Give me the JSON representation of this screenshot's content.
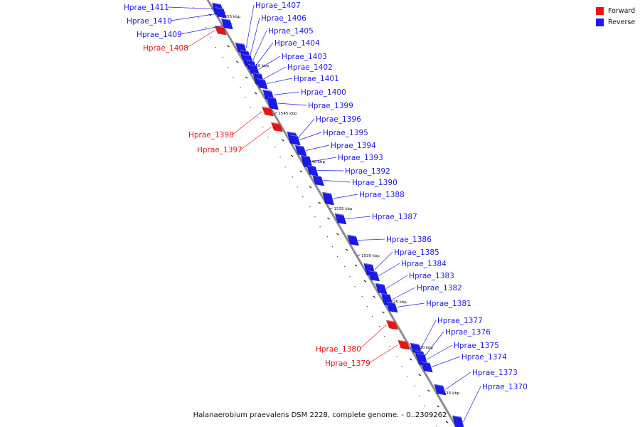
{
  "colors": {
    "forward": "#ee1111",
    "reverse": "#1a1af0",
    "backbone": "#8c8c8c"
  },
  "legend": [
    {
      "label": "Forward",
      "color": "#ee1111"
    },
    {
      "label": "Reverse",
      "color": "#1a1af0"
    }
  ],
  "caption": "Halanaerobium praevalens DSM 2228, complete genome. - 0..2309262",
  "ticks": [
    "1555 kbp",
    "1550 kbp",
    "1545 kbp",
    "1540 kbp",
    "1535 kbp",
    "1530 kbp",
    "1525 kbp",
    "1520 kbp",
    "1515 kbp"
  ],
  "genes": [
    {
      "name": "Hprae_1411",
      "strand": "reverse"
    },
    {
      "name": "Hprae_1410",
      "strand": "reverse"
    },
    {
      "name": "Hprae_1409",
      "strand": "reverse"
    },
    {
      "name": "Hprae_1408",
      "strand": "forward"
    },
    {
      "name": "Hprae_1407",
      "strand": "reverse"
    },
    {
      "name": "Hprae_1406",
      "strand": "reverse"
    },
    {
      "name": "Hprae_1405",
      "strand": "reverse"
    },
    {
      "name": "Hprae_1404",
      "strand": "reverse"
    },
    {
      "name": "Hprae_1403",
      "strand": "reverse"
    },
    {
      "name": "Hprae_1402",
      "strand": "reverse"
    },
    {
      "name": "Hprae_1401",
      "strand": "reverse"
    },
    {
      "name": "Hprae_1400",
      "strand": "reverse"
    },
    {
      "name": "Hprae_1399",
      "strand": "reverse"
    },
    {
      "name": "Hprae_1398",
      "strand": "forward"
    },
    {
      "name": "Hprae_1397",
      "strand": "forward"
    },
    {
      "name": "Hprae_1396",
      "strand": "reverse"
    },
    {
      "name": "Hprae_1395",
      "strand": "reverse"
    },
    {
      "name": "Hprae_1394",
      "strand": "reverse"
    },
    {
      "name": "Hprae_1393",
      "strand": "reverse"
    },
    {
      "name": "Hprae_1392",
      "strand": "reverse"
    },
    {
      "name": "Hprae_1390",
      "strand": "reverse"
    },
    {
      "name": "Hprae_1388",
      "strand": "reverse"
    },
    {
      "name": "Hprae_1387",
      "strand": "reverse"
    },
    {
      "name": "Hprae_1386",
      "strand": "reverse"
    },
    {
      "name": "Hprae_1385",
      "strand": "reverse"
    },
    {
      "name": "Hprae_1384",
      "strand": "reverse"
    },
    {
      "name": "Hprae_1383",
      "strand": "reverse"
    },
    {
      "name": "Hprae_1382",
      "strand": "reverse"
    },
    {
      "name": "Hprae_1381",
      "strand": "reverse"
    },
    {
      "name": "Hprae_1380",
      "strand": "forward"
    },
    {
      "name": "Hprae_1379",
      "strand": "forward"
    },
    {
      "name": "Hprae_1377",
      "strand": "reverse"
    },
    {
      "name": "Hprae_1376",
      "strand": "reverse"
    },
    {
      "name": "Hprae_1375",
      "strand": "reverse"
    },
    {
      "name": "Hprae_1374",
      "strand": "reverse"
    },
    {
      "name": "Hprae_1373",
      "strand": "reverse"
    },
    {
      "name": "Hprae_1370",
      "strand": "reverse"
    }
  ]
}
